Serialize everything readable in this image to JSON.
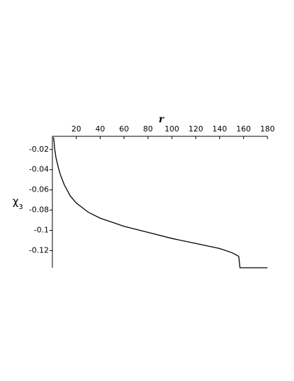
{
  "chart_data": {
    "type": "line",
    "xlabel": "r",
    "ylabel": {
      "symbol": "χ",
      "subscript": "3"
    },
    "x": [
      1,
      2,
      3,
      5,
      7,
      10,
      15,
      20,
      30,
      40,
      50,
      60,
      80,
      100,
      120,
      140,
      150,
      155,
      156,
      157,
      170,
      180
    ],
    "series": [
      {
        "color": "#000000",
        "values": [
          -0.008,
          -0.02,
          -0.028,
          -0.038,
          -0.046,
          -0.055,
          -0.066,
          -0.073,
          -0.082,
          -0.088,
          -0.092,
          -0.096,
          -0.102,
          -0.108,
          -0.113,
          -0.118,
          -0.122,
          -0.125,
          -0.126,
          -0.137,
          -0.137,
          -0.137
        ]
      }
    ],
    "xlim": [
      0,
      180
    ],
    "xticks": [
      20,
      40,
      60,
      80,
      100,
      120,
      140,
      160,
      180
    ],
    "ylim": [
      -0.137,
      -0.007
    ],
    "yticks": [
      -0.02,
      -0.04,
      -0.06,
      -0.08,
      -0.1,
      -0.12
    ]
  }
}
